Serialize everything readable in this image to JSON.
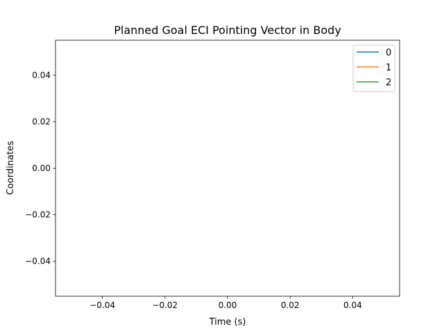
{
  "chart_data": {
    "type": "line",
    "title": "Planned Goal ECI Pointing Vector in Body",
    "xlabel": "Time (s)",
    "ylabel": "Coordinates",
    "xlim": [
      -0.055,
      0.055
    ],
    "ylim": [
      -0.055,
      0.055
    ],
    "x_ticks": [
      -0.04,
      -0.02,
      0.0,
      0.02,
      0.04
    ],
    "x_tick_labels": [
      "−0.04",
      "−0.02",
      "0.00",
      "0.02",
      "0.04"
    ],
    "y_ticks": [
      -0.04,
      -0.02,
      0.0,
      0.02,
      0.04
    ],
    "y_tick_labels": [
      "−0.04",
      "−0.02",
      "0.00",
      "0.02",
      "0.04"
    ],
    "grid": false,
    "legend_position": "top-right",
    "series": [
      {
        "name": "0",
        "color": "#1f77b4",
        "x": [],
        "y": []
      },
      {
        "name": "1",
        "color": "#ff7f0e",
        "x": [],
        "y": []
      },
      {
        "name": "2",
        "color": "#2ca02c",
        "x": [],
        "y": []
      }
    ]
  }
}
